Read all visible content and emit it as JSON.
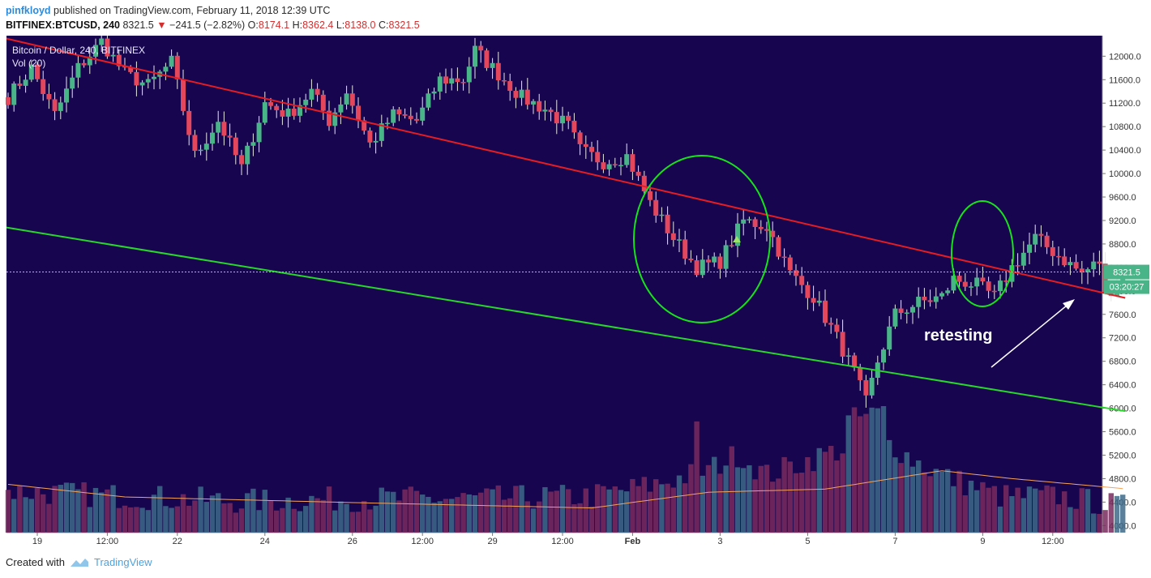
{
  "header": {
    "user": "pinfkloyd",
    "published": "published on TradingView.com, February 11, 2018 12:39 UTC",
    "symbol": "BITFINEX:BTCUSD, 240",
    "last": "8321.5",
    "change": "−241.5 (−2.82%)",
    "open_label": "O:",
    "open": "8174.1",
    "high_label": "H:",
    "high": "8362.4",
    "low_label": "L:",
    "low": "8138.0",
    "close_label": "C:",
    "close": "8321.5"
  },
  "legend": {
    "title": "Bitcoin / Dollar, 240, BITFINEX",
    "volume": "Vol (20)"
  },
  "footer": {
    "created_with": "Created with",
    "brand": "TradingView"
  },
  "annotation": {
    "text": "retesting"
  },
  "price_tags": {
    "price": "8321.5",
    "countdown": "03:20:27"
  },
  "colors": {
    "background": "#17064f",
    "up": "#49b487",
    "down": "#e2475d",
    "resistance": "#e51c23",
    "support": "#27d82a",
    "circle": "#17e31a",
    "vol_ma": "#f5a35a"
  },
  "chart_data": {
    "type": "candlestick",
    "title": "Bitcoin / Dollar, 240, BITFINEX",
    "ylim": [
      3880,
      12350
    ],
    "yticks": [
      4000,
      4400,
      4800,
      5200,
      5600,
      6000,
      6400,
      6800,
      7200,
      7600,
      8000,
      8400,
      8800,
      9200,
      9600,
      10000,
      10400,
      10800,
      11200,
      11600,
      12000
    ],
    "xticks": [
      {
        "bar": 5,
        "label": "19"
      },
      {
        "bar": 17,
        "label": "12:00"
      },
      {
        "bar": 29,
        "label": "22"
      },
      {
        "bar": 44,
        "label": "24"
      },
      {
        "bar": 59,
        "label": "26"
      },
      {
        "bar": 71,
        "label": "12:00"
      },
      {
        "bar": 83,
        "label": "29"
      },
      {
        "bar": 95,
        "label": "12:00"
      },
      {
        "bar": 107,
        "label": "Feb"
      },
      {
        "bar": 122,
        "label": "3"
      },
      {
        "bar": 137,
        "label": "5"
      },
      {
        "bar": 152,
        "label": "7"
      },
      {
        "bar": 167,
        "label": "9"
      },
      {
        "bar": 179,
        "label": "12:00"
      }
    ],
    "keys": [
      [
        0,
        11300
      ],
      [
        4,
        11800
      ],
      [
        8,
        11000
      ],
      [
        12,
        11800
      ],
      [
        16,
        12250
      ],
      [
        20,
        11700
      ],
      [
        24,
        11500
      ],
      [
        28,
        11900
      ],
      [
        32,
        10300
      ],
      [
        36,
        10900
      ],
      [
        40,
        10100
      ],
      [
        44,
        11200
      ],
      [
        48,
        11000
      ],
      [
        52,
        11400
      ],
      [
        55,
        10900
      ],
      [
        58,
        11400
      ],
      [
        62,
        10500
      ],
      [
        66,
        11000
      ],
      [
        70,
        10900
      ],
      [
        74,
        11600
      ],
      [
        78,
        11600
      ],
      [
        80,
        12100
      ],
      [
        84,
        11700
      ],
      [
        88,
        11300
      ],
      [
        92,
        11100
      ],
      [
        96,
        10800
      ],
      [
        98,
        10400
      ],
      [
        102,
        10200
      ],
      [
        106,
        10300
      ],
      [
        110,
        9500
      ],
      [
        114,
        8900
      ],
      [
        118,
        8400
      ],
      [
        122,
        8500
      ],
      [
        126,
        9200
      ],
      [
        130,
        9100
      ],
      [
        134,
        8300
      ],
      [
        138,
        7900
      ],
      [
        142,
        7200
      ],
      [
        145,
        6600
      ],
      [
        147,
        6100
      ],
      [
        149,
        6800
      ],
      [
        152,
        7600
      ],
      [
        156,
        7800
      ],
      [
        160,
        7900
      ],
      [
        162,
        8200
      ],
      [
        166,
        8100
      ],
      [
        169,
        7900
      ],
      [
        172,
        8400
      ],
      [
        176,
        8900
      ],
      [
        180,
        8600
      ],
      [
        184,
        8300
      ],
      [
        187,
        8500
      ],
      [
        188,
        7900
      ],
      [
        191,
        8321.5
      ]
    ],
    "volume_keys": [
      [
        0,
        4600
      ],
      [
        20,
        4500
      ],
      [
        40,
        4400
      ],
      [
        60,
        4450
      ],
      [
        80,
        4450
      ],
      [
        100,
        4500
      ],
      [
        110,
        4700
      ],
      [
        120,
        5000
      ],
      [
        125,
        5300
      ],
      [
        130,
        4900
      ],
      [
        140,
        5300
      ],
      [
        146,
        5500
      ],
      [
        150,
        5600
      ],
      [
        155,
        5200
      ],
      [
        160,
        4900
      ],
      [
        170,
        4500
      ],
      [
        180,
        4500
      ],
      [
        191,
        4300
      ]
    ],
    "volume_ma_keys": [
      [
        0,
        4800
      ],
      [
        20,
        4560
      ],
      [
        60,
        4450
      ],
      [
        100,
        4350
      ],
      [
        120,
        4650
      ],
      [
        140,
        4710
      ],
      [
        160,
        5060
      ],
      [
        172,
        4910
      ],
      [
        191,
        4720
      ]
    ],
    "resistance_line": {
      "from": [
        0,
        12300
      ],
      "to": [
        191,
        7880
      ]
    },
    "support_line": {
      "from": [
        0,
        9080
      ],
      "to": [
        191,
        5950
      ]
    },
    "current_price": 8321.5
  }
}
